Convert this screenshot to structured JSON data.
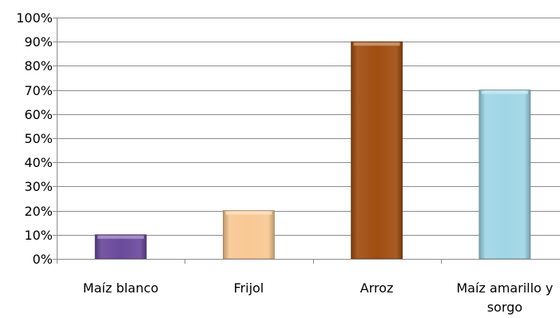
{
  "chart_data": {
    "type": "bar",
    "categories": [
      "Maíz blanco",
      "Frijol",
      "Arroz",
      "Maíz amarillo y sorgo"
    ],
    "category_lines": [
      [
        "Maíz blanco"
      ],
      [
        "Frijol"
      ],
      [
        "Arroz"
      ],
      [
        "Maíz amarillo y",
        "sorgo"
      ]
    ],
    "values": [
      0.1,
      0.2,
      0.9,
      0.7
    ],
    "ylim": [
      0,
      1
    ],
    "y_ticks": [
      0,
      0.1,
      0.2,
      0.3,
      0.4,
      0.5,
      0.6,
      0.7,
      0.8,
      0.9,
      1.0
    ],
    "y_tick_labels": [
      "0%",
      "10%",
      "20%",
      "30%",
      "40%",
      "50%",
      "60%",
      "70%",
      "80%",
      "90%",
      "100%"
    ],
    "grid": true,
    "legend": "none",
    "title": "",
    "xlabel": "",
    "ylabel": "",
    "colors": [
      "#6a4a9c",
      "#f9c893",
      "#a04d10",
      "#9fd6e6"
    ],
    "grid_color": "#8c8c8c",
    "axis_color": "#8c8c8c"
  }
}
